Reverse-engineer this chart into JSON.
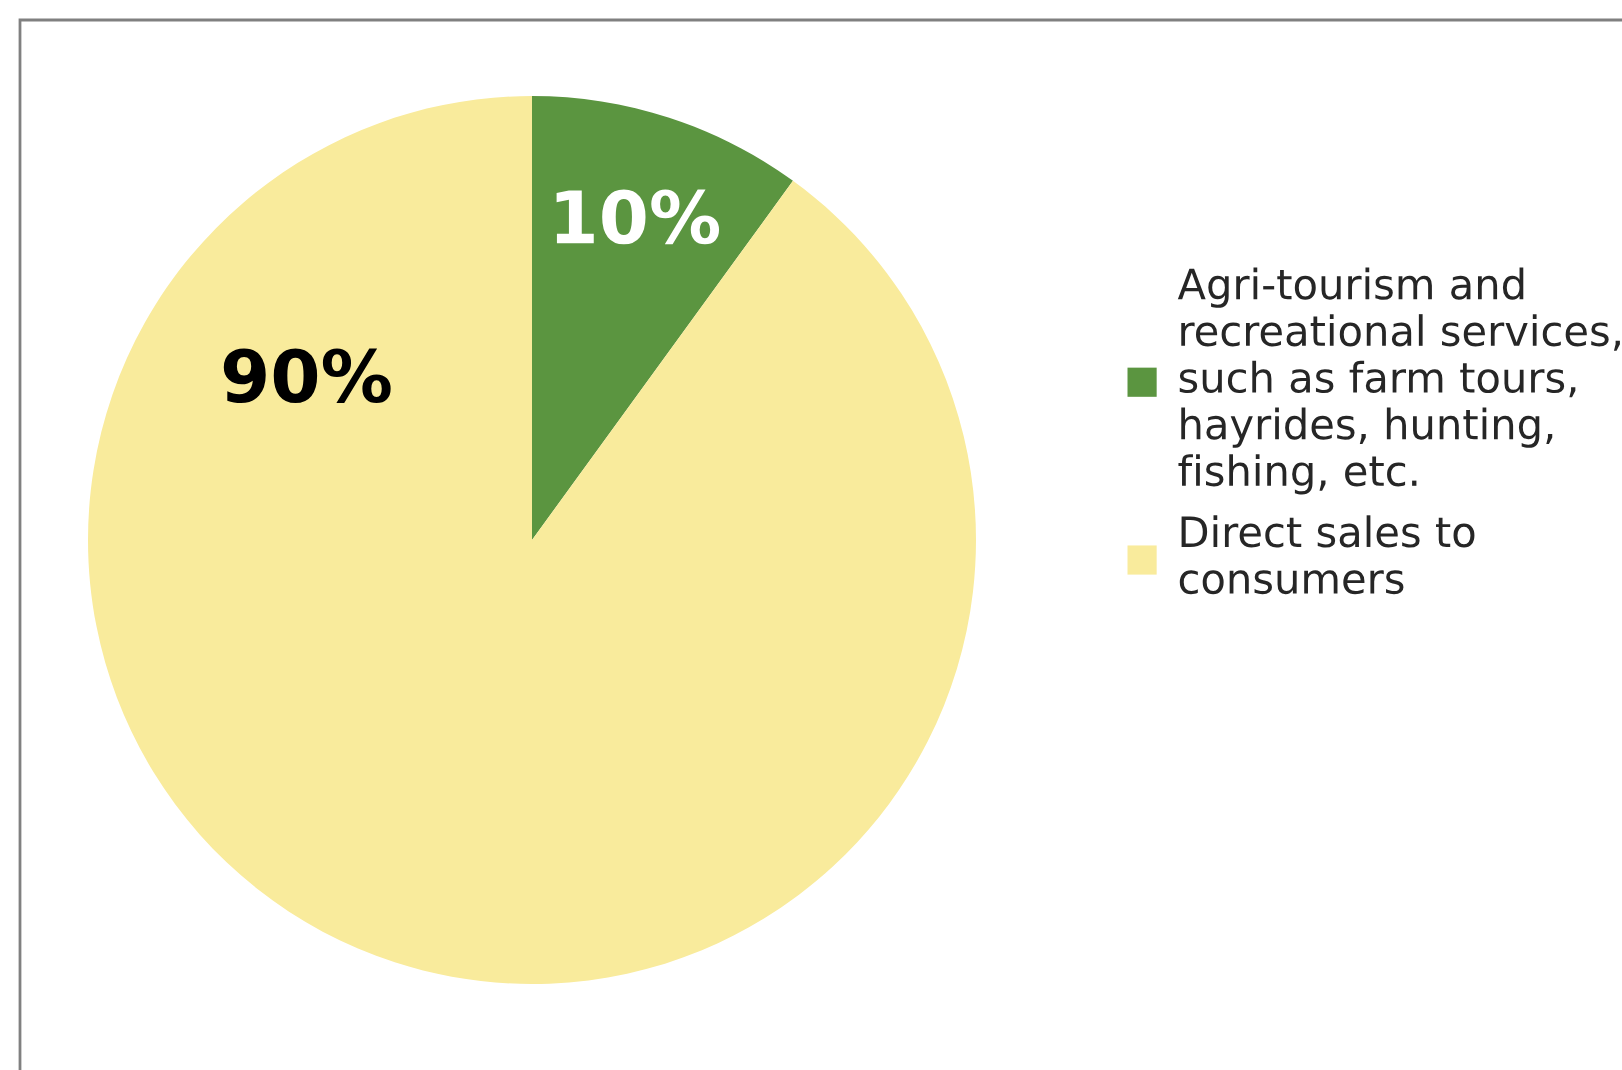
{
  "chart_data": {
    "type": "pie",
    "categories": [
      "Agri-tourism and\nrecreational services,\nsuch as farm tours,\nhayrides, hunting,\nfishing, etc.",
      "Direct sales to\nconsumers"
    ],
    "values": [
      10,
      90
    ],
    "colors": [
      "#5b9540",
      "#f9eb9c"
    ],
    "value_labels": [
      "10%",
      "90%"
    ],
    "legend": "right"
  }
}
